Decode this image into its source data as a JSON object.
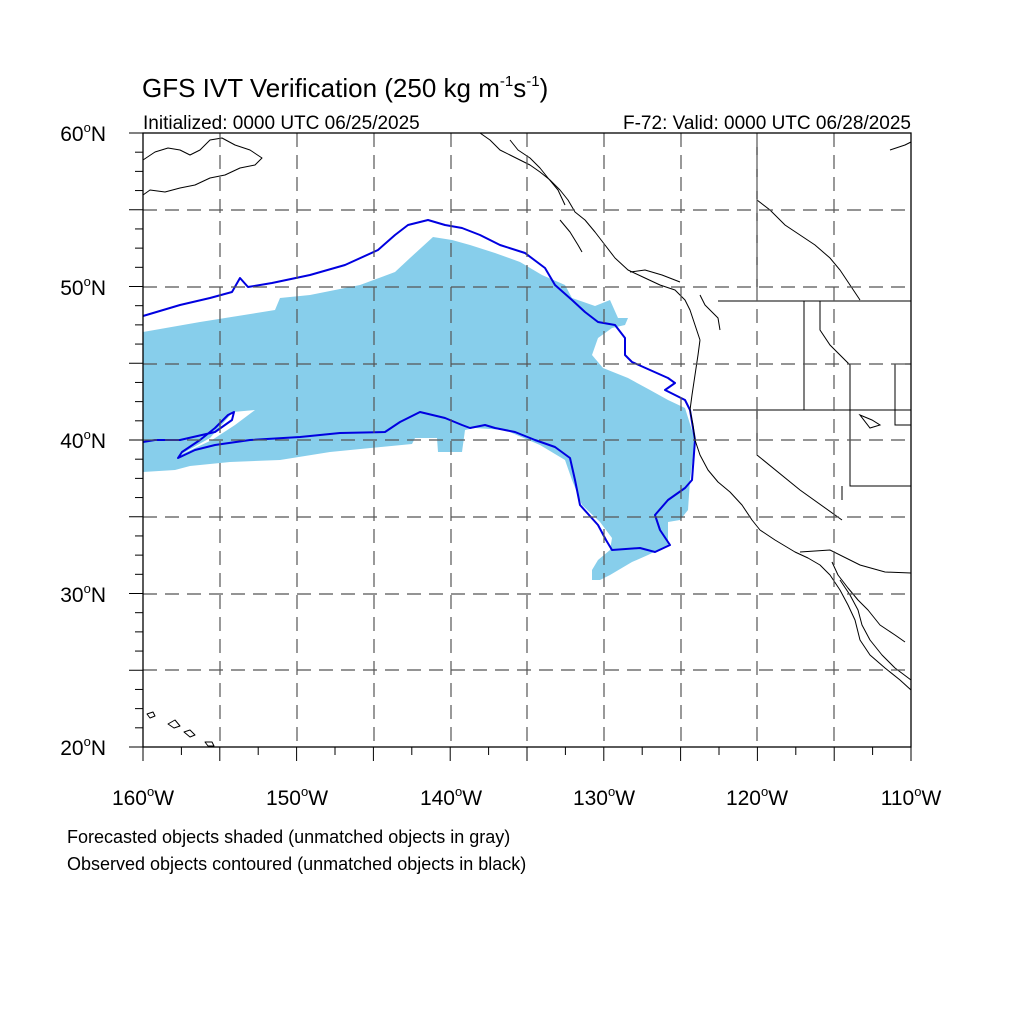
{
  "title": "GFS IVT Verification (250 kg m",
  "title_unit_a": "-1",
  "title_unit_b": "s",
  "title_unit_c": "-1",
  "title_end": ")",
  "initialized": "Initialized: 0000 UTC 06/25/2025",
  "valid": "F-72: Valid: 0000 UTC 06/28/2025",
  "lat_labels": [
    "60",
    "50",
    "40",
    "30",
    "20"
  ],
  "lat_suffix": "N",
  "lon_labels": [
    "160",
    "150",
    "140",
    "130",
    "120",
    "110"
  ],
  "lon_suffix": "W",
  "degree_symbol": "o",
  "caption_line1": "Forecasted objects shaded (unmatched objects in gray)",
  "caption_line2": "Observed objects contoured (unmatched objects in black)",
  "colors": {
    "forecast_fill": "#87ceeb",
    "observed_contour": "#0000e0",
    "grid": "#555555"
  },
  "map": {
    "lon_range": [
      -160,
      -110
    ],
    "lat_range": [
      20,
      60
    ],
    "projection": "cylindrical-equidistant",
    "grid": true
  }
}
